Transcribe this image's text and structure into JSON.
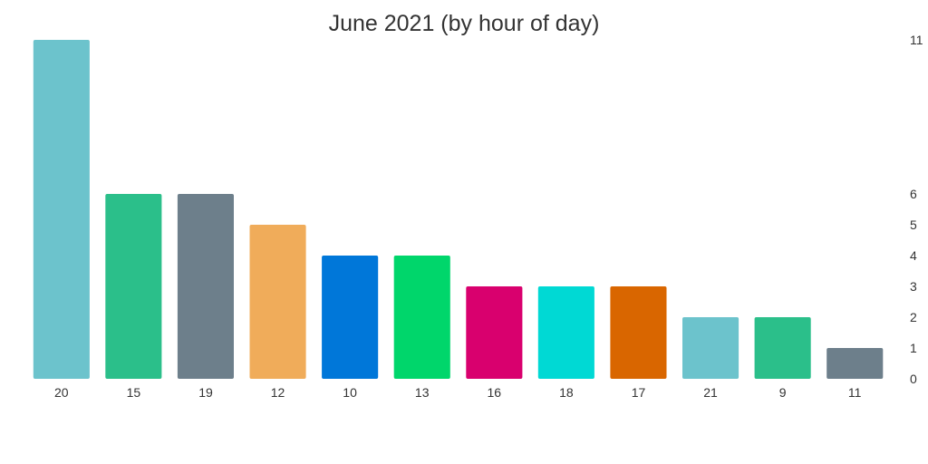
{
  "chart_data": {
    "type": "bar",
    "title": "June 2021 (by hour of day)",
    "xlabel": "",
    "ylabel": "",
    "categories": [
      "20",
      "15",
      "19",
      "12",
      "10",
      "13",
      "16",
      "18",
      "17",
      "21",
      "9",
      "11"
    ],
    "values": [
      11,
      6,
      6,
      5,
      4,
      4,
      3,
      3,
      3,
      2,
      2,
      1
    ],
    "colors": [
      "#6cc3cc",
      "#2bbf8a",
      "#6d7f8b",
      "#f0ac5a",
      "#0077d9",
      "#00d66b",
      "#d9006e",
      "#00d9d4",
      "#d96600",
      "#6cc3cc",
      "#2bbf8a",
      "#6d7f8b"
    ],
    "y_ticks": [
      0,
      1,
      2,
      3,
      4,
      5,
      6,
      11
    ],
    "ylim": [
      0,
      11
    ],
    "y_axis_position": "right",
    "grid": false,
    "legend": "none"
  }
}
